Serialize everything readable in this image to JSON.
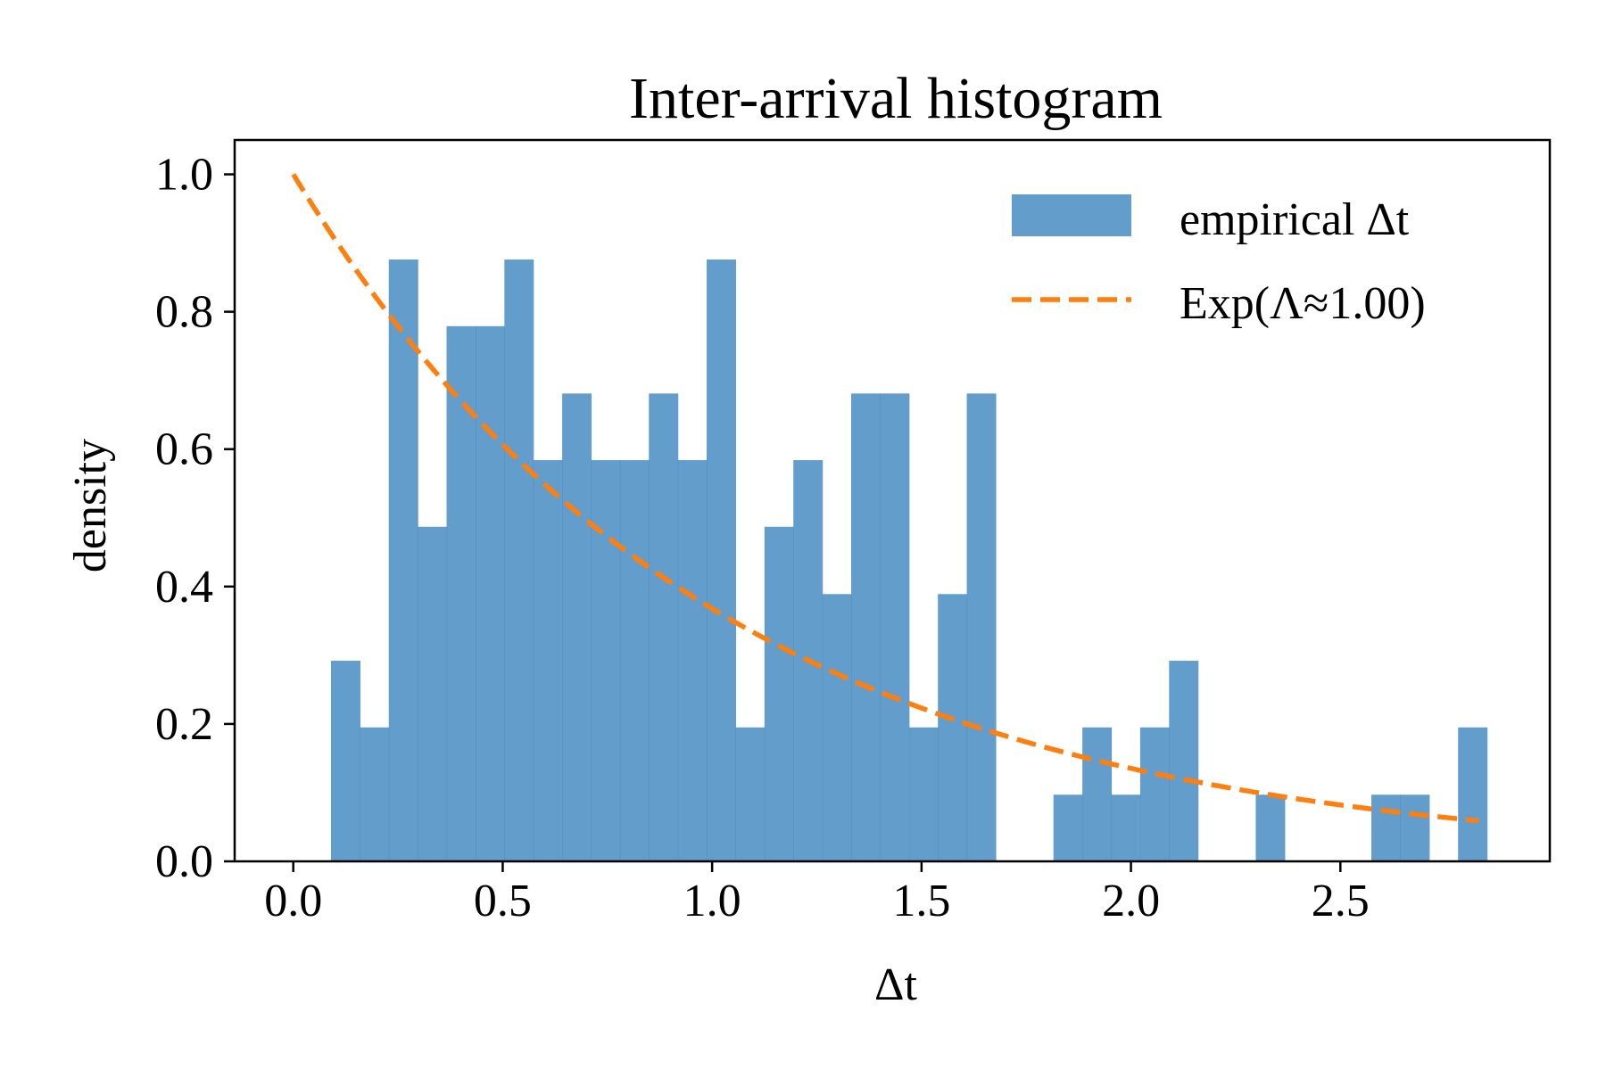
{
  "chart_data": {
    "type": "bar",
    "title": "Inter-arrival histogram",
    "xlabel": "Δt",
    "ylabel": "density",
    "xlim": [
      -0.14,
      3.0
    ],
    "ylim": [
      0,
      1.05
    ],
    "xticks": [
      0.0,
      0.5,
      1.0,
      1.5,
      2.0,
      2.5
    ],
    "xtick_labels": [
      "0.0",
      "0.5",
      "1.0",
      "1.5",
      "2.0",
      "2.5"
    ],
    "yticks": [
      0.0,
      0.2,
      0.4,
      0.6,
      0.8,
      1.0
    ],
    "ytick_labels": [
      "0.0",
      "0.2",
      "0.4",
      "0.6",
      "0.8",
      "1.0"
    ],
    "grid": false,
    "legend_position": "top-right",
    "histogram": {
      "name": "empirical Δt",
      "color": "#4c8fc4",
      "opacity": 0.87,
      "bin_start": 0.09,
      "bin_width": 0.069,
      "values": [
        0.292,
        0.195,
        0.876,
        0.487,
        0.779,
        0.779,
        0.876,
        0.584,
        0.681,
        0.584,
        0.584,
        0.681,
        0.584,
        0.876,
        0.195,
        0.487,
        0.584,
        0.389,
        0.681,
        0.681,
        0.195,
        0.389,
        0.681,
        0.0,
        0.0,
        0.097,
        0.195,
        0.097,
        0.195,
        0.292,
        0.0,
        0.0,
        0.097,
        0.0,
        0.0,
        0.0,
        0.097,
        0.097,
        0.0,
        0.195
      ]
    },
    "fit_curve": {
      "name": "Exp(Λ≈1.00)",
      "color": "#ff7f0e",
      "style": "dashed",
      "function": "exponential",
      "lambda": 1.0,
      "x_range": [
        0.0,
        2.83
      ]
    }
  }
}
